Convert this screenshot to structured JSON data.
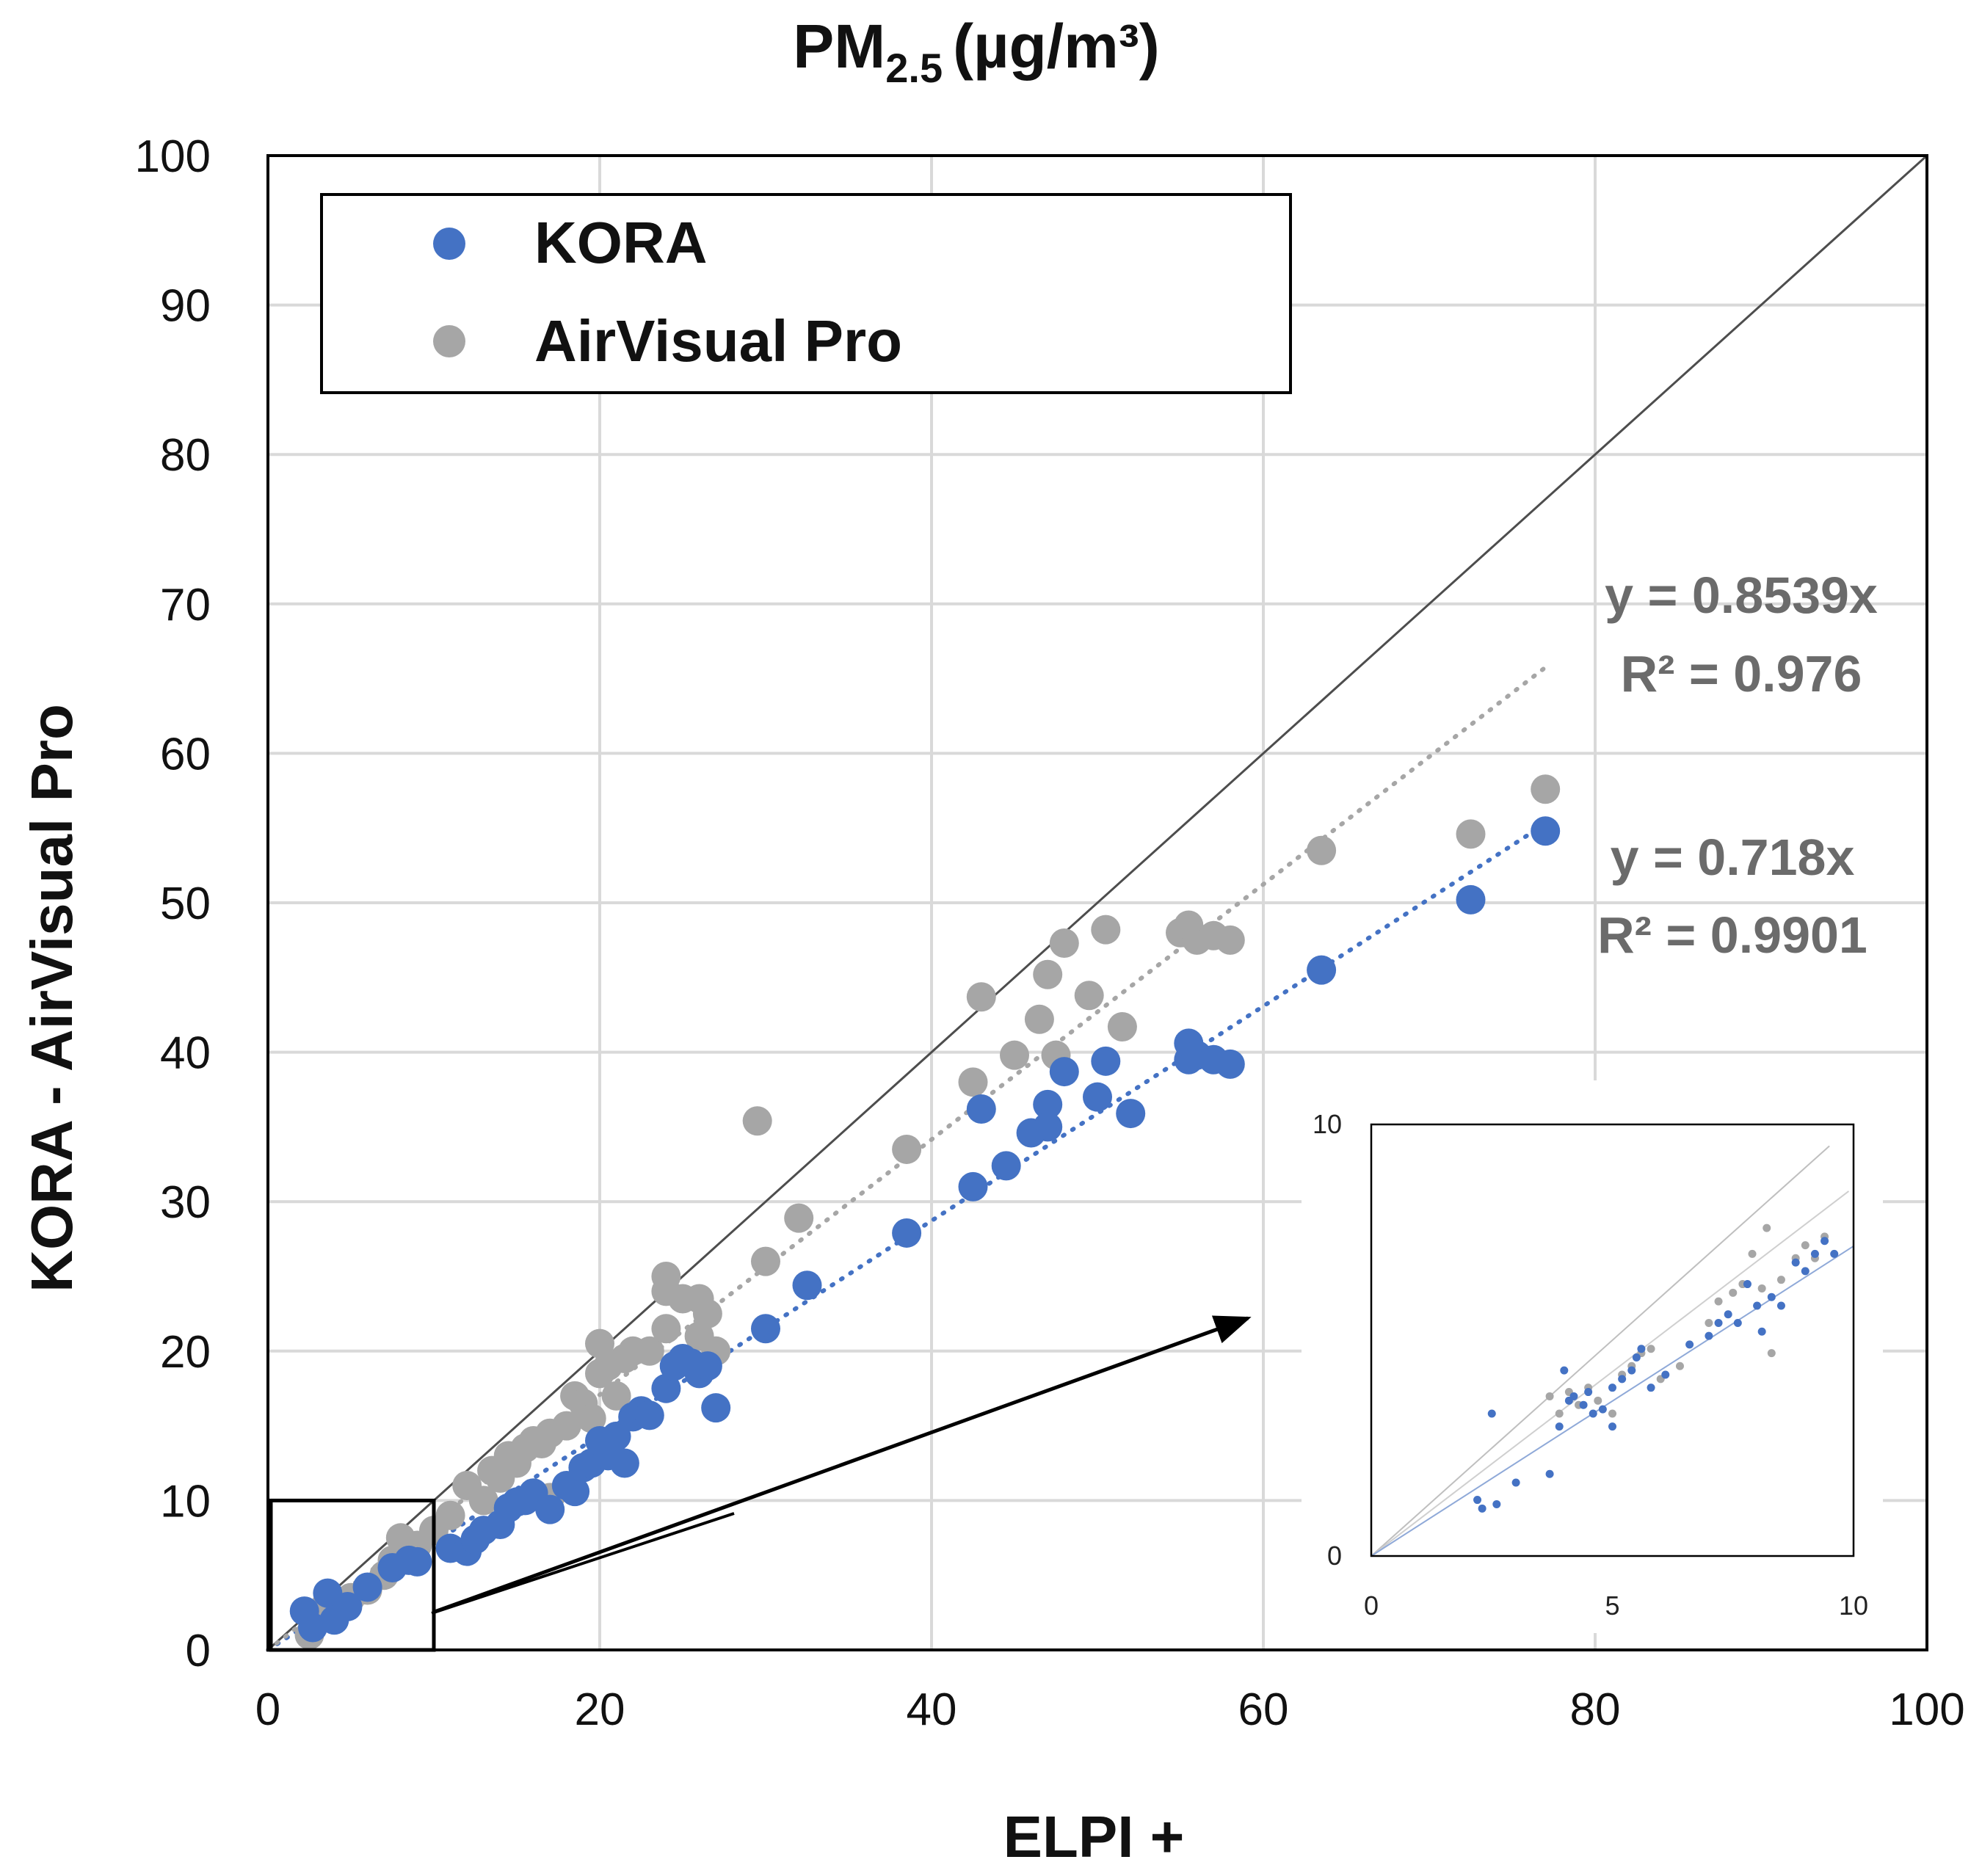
{
  "chart_data": {
    "type": "scatter",
    "title": {
      "main": "PM",
      "sub": "2.5",
      "units": "(µg/m³)"
    },
    "xlabel": "ELPI +",
    "ylabel": "KORA - AirVisual Pro",
    "xlim": [
      0,
      100
    ],
    "ylim": [
      0,
      100
    ],
    "xticks": [
      "0",
      "20",
      "40",
      "60",
      "80",
      "100"
    ],
    "yticks": [
      "0",
      "10",
      "20",
      "30",
      "40",
      "50",
      "60",
      "70",
      "80",
      "90",
      "100"
    ],
    "grid": true,
    "legend_position": "top-left",
    "reference_line": "y = x",
    "series": [
      {
        "name": "KORA",
        "color": "#4472c4",
        "marker": "circle",
        "trendline": {
          "slope": 0.718,
          "label_eq": "y = 0.718x",
          "label_r2": "R² = 0.9901",
          "x_end": 77
        },
        "points": [
          [
            2.2,
            2.6
          ],
          [
            3.6,
            3.8
          ],
          [
            4,
            2
          ],
          [
            4.8,
            2.9
          ],
          [
            2.7,
            1.5
          ],
          [
            6,
            4.2
          ],
          [
            7.5,
            5.5
          ],
          [
            8.5,
            6
          ],
          [
            9,
            5.9
          ],
          [
            11,
            6.8
          ],
          [
            12,
            6.6
          ],
          [
            12.5,
            7.4
          ],
          [
            13,
            8
          ],
          [
            14,
            8.4
          ],
          [
            14.5,
            9.5
          ],
          [
            15,
            9.9
          ],
          [
            15.5,
            10
          ],
          [
            16,
            10.5
          ],
          [
            17,
            9.4
          ],
          [
            18,
            11
          ],
          [
            18.5,
            10.6
          ],
          [
            19,
            12.2
          ],
          [
            19.5,
            12.5
          ],
          [
            20,
            14
          ],
          [
            20.5,
            13
          ],
          [
            21,
            14.3
          ],
          [
            21.5,
            12.5
          ],
          [
            22,
            15.6
          ],
          [
            22.5,
            16
          ],
          [
            23,
            15.7
          ],
          [
            24,
            17.5
          ],
          [
            24.5,
            19
          ],
          [
            25,
            19.5
          ],
          [
            25.5,
            19.2
          ],
          [
            26,
            18.5
          ],
          [
            26.5,
            19
          ],
          [
            27,
            16.2
          ],
          [
            30,
            21.5
          ],
          [
            32.5,
            24.4
          ],
          [
            38.5,
            27.9
          ],
          [
            42.5,
            31
          ],
          [
            43,
            36.2
          ],
          [
            44.5,
            32.4
          ],
          [
            46,
            34.6
          ],
          [
            47,
            36.5
          ],
          [
            47,
            35
          ],
          [
            48,
            38.7
          ],
          [
            50,
            37
          ],
          [
            50.5,
            39.4
          ],
          [
            52,
            35.9
          ],
          [
            55.5,
            39.5
          ],
          [
            55.5,
            40.6
          ],
          [
            56,
            39.8
          ],
          [
            57,
            39.5
          ],
          [
            58,
            39.2
          ],
          [
            63.5,
            45.5
          ],
          [
            72.5,
            50.2
          ],
          [
            77,
            54.8
          ]
        ]
      },
      {
        "name": "AirVisual Pro",
        "color": "#a6a6a6",
        "marker": "circle",
        "trendline": {
          "slope": 0.8539,
          "label_eq": "y = 0.8539x",
          "label_r2": "R² = 0.976",
          "x_end": 77
        },
        "points": [
          [
            2.5,
            1
          ],
          [
            3.5,
            3
          ],
          [
            5,
            3.5
          ],
          [
            6,
            4
          ],
          [
            7,
            5
          ],
          [
            7.5,
            6
          ],
          [
            8,
            7.5
          ],
          [
            8.5,
            6.8
          ],
          [
            9,
            7
          ],
          [
            10,
            8
          ],
          [
            11,
            9
          ],
          [
            12,
            11
          ],
          [
            13,
            10
          ],
          [
            13.5,
            12
          ],
          [
            14,
            11.5
          ],
          [
            14.5,
            13
          ],
          [
            15,
            12.5
          ],
          [
            15.5,
            13.5
          ],
          [
            16,
            14
          ],
          [
            16.5,
            13.8
          ],
          [
            17,
            14.5
          ],
          [
            17,
            10.2
          ],
          [
            18,
            15
          ],
          [
            18.5,
            17
          ],
          [
            19,
            16.5
          ],
          [
            19.5,
            15.5
          ],
          [
            20,
            18.5
          ],
          [
            20,
            20.5
          ],
          [
            20.5,
            19
          ],
          [
            21,
            17
          ],
          [
            21.5,
            19.5
          ],
          [
            22,
            20
          ],
          [
            23,
            20
          ],
          [
            24,
            21.5
          ],
          [
            24,
            24
          ],
          [
            24,
            25
          ],
          [
            25,
            23.5
          ],
          [
            26,
            21
          ],
          [
            26,
            23.5
          ],
          [
            26.5,
            22.5
          ],
          [
            27,
            20
          ],
          [
            29.5,
            35.4
          ],
          [
            30,
            26
          ],
          [
            32,
            28.9
          ],
          [
            38.5,
            33.5
          ],
          [
            42.5,
            38
          ],
          [
            43,
            43.7
          ],
          [
            45,
            39.8
          ],
          [
            46.5,
            42.2
          ],
          [
            47,
            45.2
          ],
          [
            47.5,
            39.8
          ],
          [
            48,
            47.3
          ],
          [
            49.5,
            43.8
          ],
          [
            50.5,
            48.2
          ],
          [
            51.5,
            41.7
          ],
          [
            55,
            48
          ],
          [
            55.5,
            48.5
          ],
          [
            56,
            47.5
          ],
          [
            57,
            47.8
          ],
          [
            58,
            47.5
          ],
          [
            63.5,
            53.5
          ],
          [
            72.5,
            54.6
          ],
          [
            77,
            57.6
          ]
        ]
      }
    ],
    "zoom_box": {
      "x": [
        0,
        10
      ],
      "y": [
        0,
        10
      ]
    },
    "inset": {
      "xlim": [
        0,
        10
      ],
      "ylim": [
        0,
        10
      ],
      "xticks": [
        "0",
        "5",
        "10"
      ],
      "yticks": [
        "0",
        "10"
      ],
      "kora_points": [
        [
          2.2,
          1.3
        ],
        [
          2.3,
          1.1
        ],
        [
          2.5,
          3.3
        ],
        [
          2.6,
          1.2
        ],
        [
          3.0,
          1.7
        ],
        [
          3.7,
          1.9
        ],
        [
          3.9,
          3.0
        ],
        [
          4.0,
          4.3
        ],
        [
          4.1,
          3.6
        ],
        [
          4.2,
          3.7
        ],
        [
          4.4,
          3.5
        ],
        [
          4.5,
          3.8
        ],
        [
          4.6,
          3.3
        ],
        [
          4.8,
          3.4
        ],
        [
          5.0,
          3.0
        ],
        [
          5.0,
          3.9
        ],
        [
          5.2,
          4.1
        ],
        [
          5.4,
          4.3
        ],
        [
          5.5,
          4.6
        ],
        [
          5.6,
          4.8
        ],
        [
          5.8,
          3.9
        ],
        [
          6.1,
          4.2
        ],
        [
          6.6,
          4.9
        ],
        [
          7.0,
          5.1
        ],
        [
          7.2,
          5.4
        ],
        [
          7.4,
          5.6
        ],
        [
          7.6,
          5.4
        ],
        [
          7.8,
          6.3
        ],
        [
          8.0,
          5.8
        ],
        [
          8.1,
          5.2
        ],
        [
          8.3,
          6.0
        ],
        [
          8.5,
          5.8
        ],
        [
          8.8,
          6.8
        ],
        [
          9.0,
          6.6
        ],
        [
          9.2,
          7.0
        ],
        [
          9.4,
          7.3
        ],
        [
          9.6,
          7.0
        ]
      ],
      "air_points": [
        [
          3.7,
          3.7
        ],
        [
          3.9,
          3.3
        ],
        [
          4.1,
          3.8
        ],
        [
          4.3,
          3.5
        ],
        [
          4.5,
          3.9
        ],
        [
          4.7,
          3.6
        ],
        [
          5.0,
          3.3
        ],
        [
          5.2,
          4.2
        ],
        [
          5.4,
          4.4
        ],
        [
          5.6,
          4.7
        ],
        [
          5.8,
          4.8
        ],
        [
          6.0,
          4.1
        ],
        [
          6.4,
          4.4
        ],
        [
          7.0,
          5.4
        ],
        [
          7.2,
          5.9
        ],
        [
          7.5,
          6.1
        ],
        [
          7.7,
          6.3
        ],
        [
          7.9,
          7.0
        ],
        [
          8.1,
          6.2
        ],
        [
          8.2,
          7.6
        ],
        [
          8.3,
          4.7
        ],
        [
          8.5,
          6.4
        ],
        [
          8.8,
          6.9
        ],
        [
          9.0,
          7.2
        ],
        [
          9.2,
          6.9
        ],
        [
          9.4,
          7.4
        ]
      ]
    }
  }
}
